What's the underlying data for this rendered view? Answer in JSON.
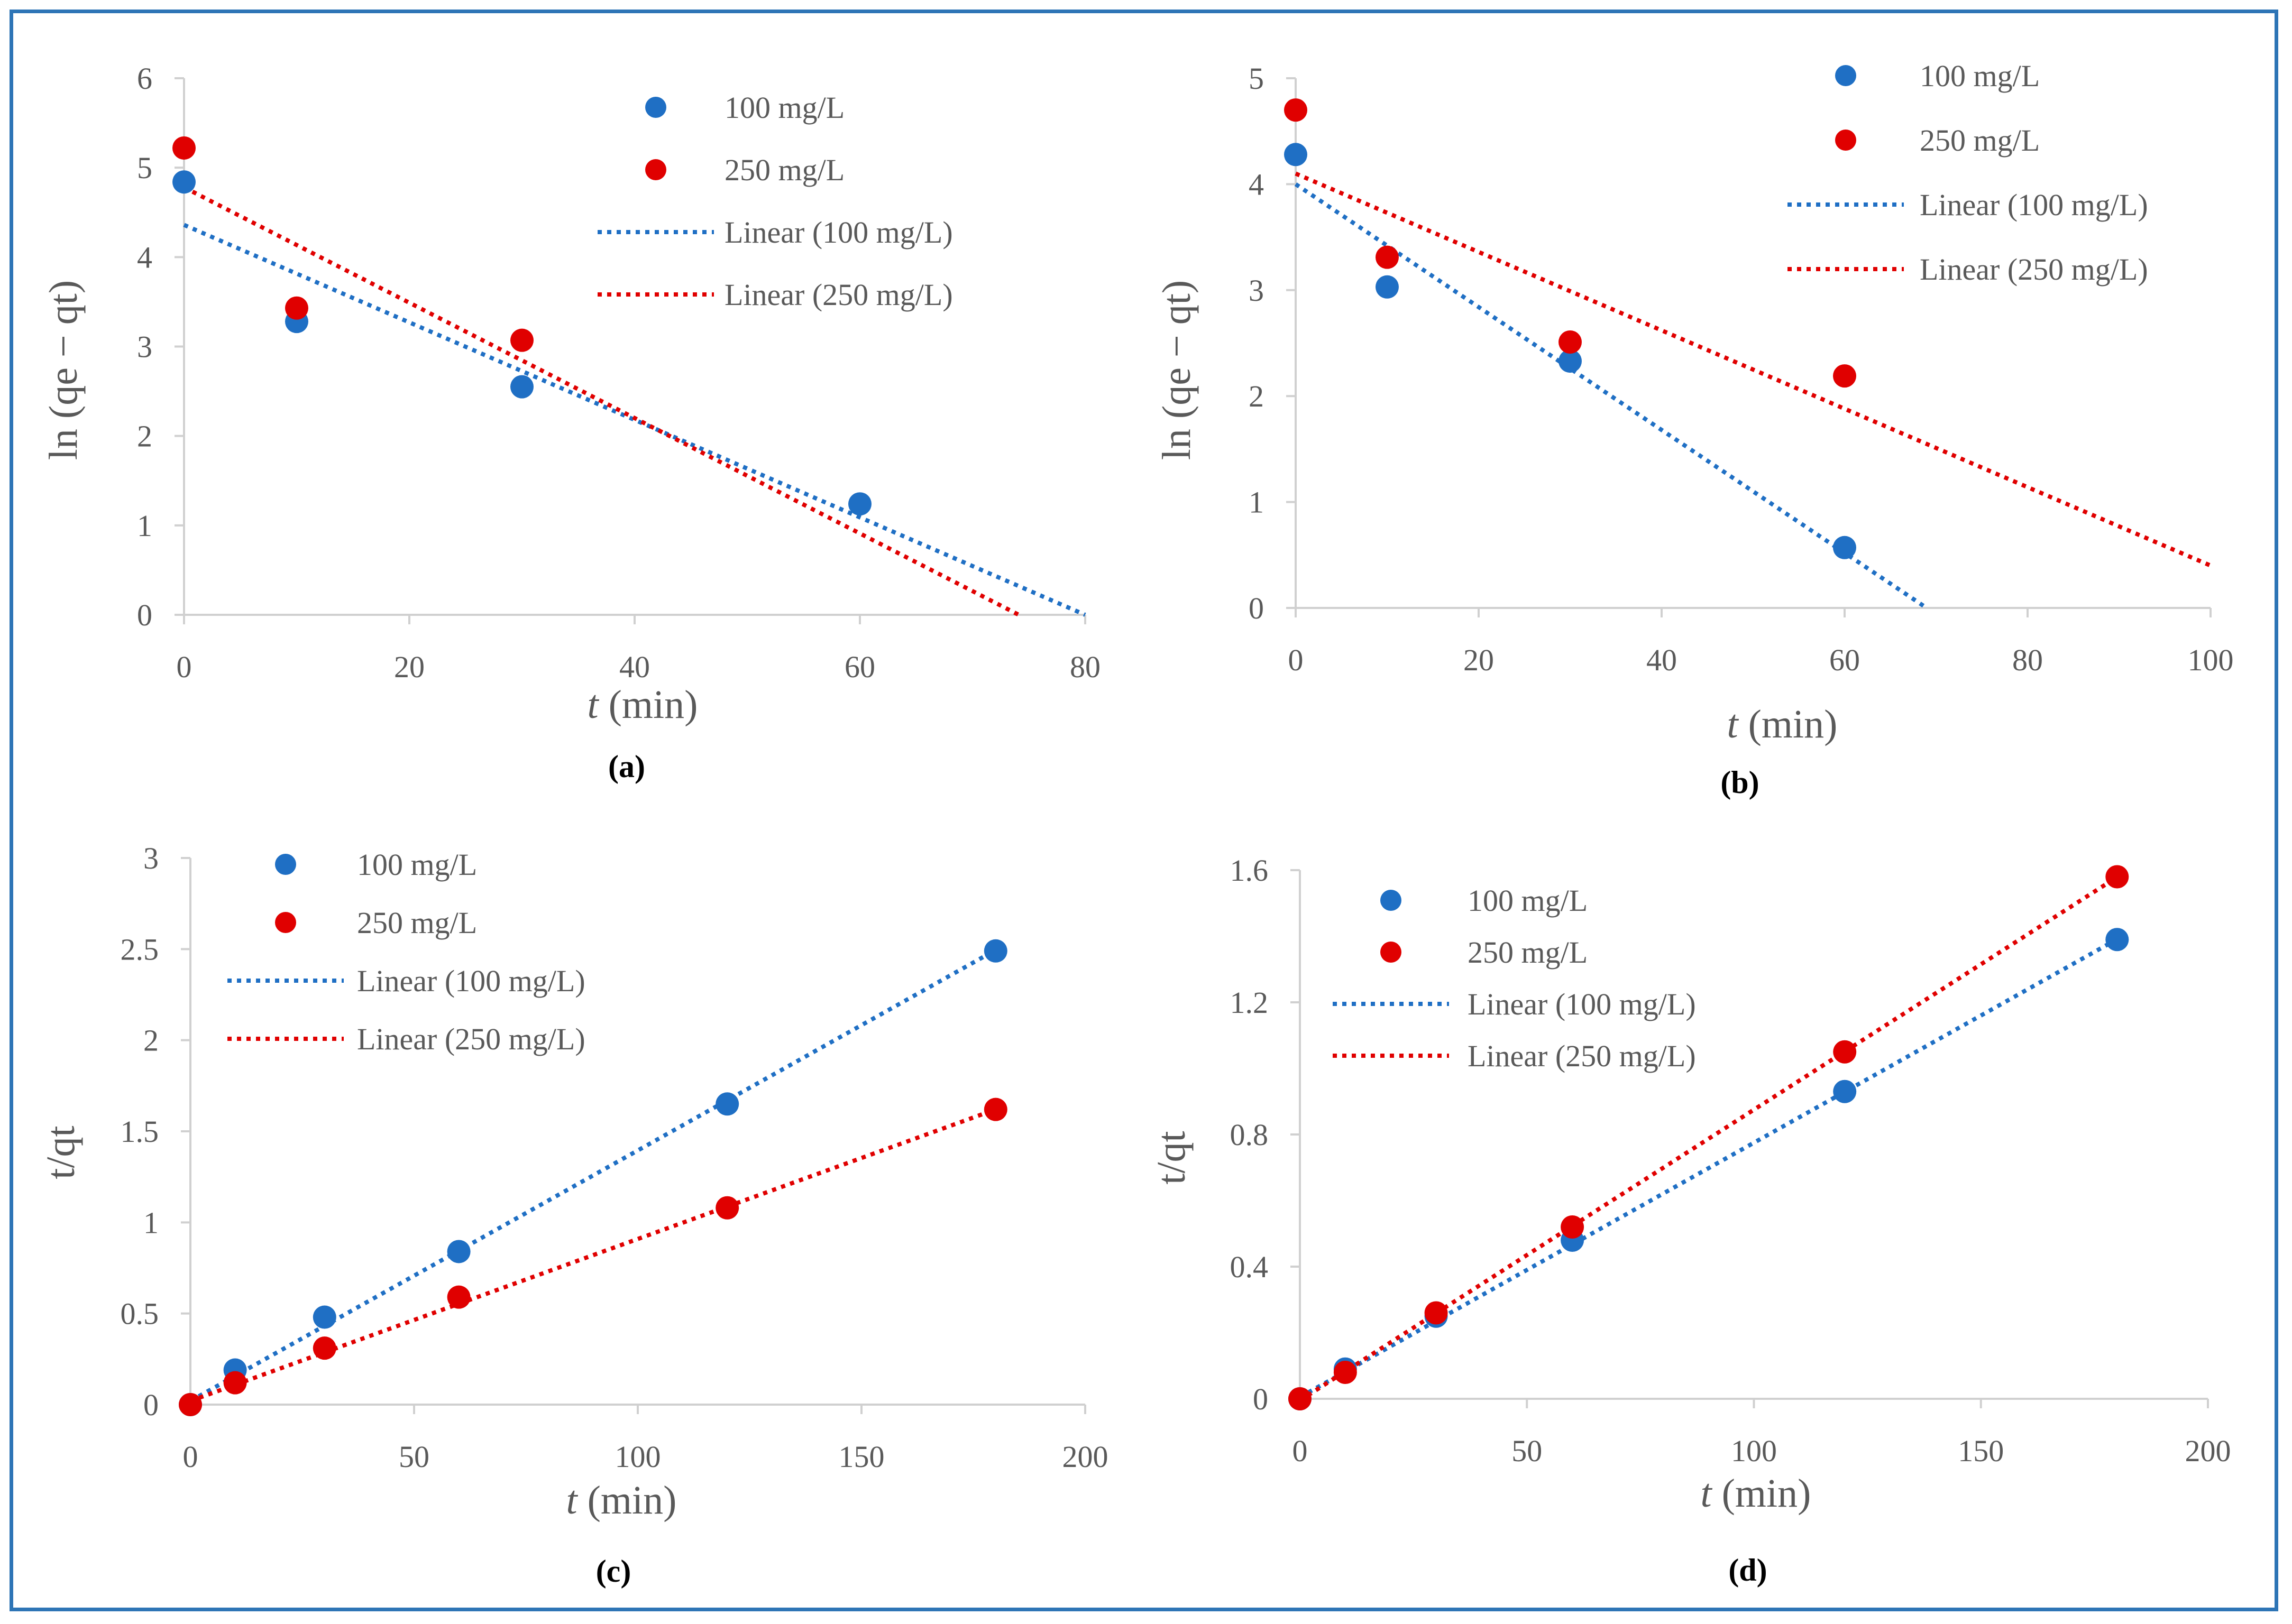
{
  "colors": {
    "series1": "#1f6fc4",
    "series2": "#e00000",
    "axis": "#d0d0d0",
    "text": "#595959"
  },
  "chart_data": [
    {
      "id": "a",
      "type": "scatter",
      "caption": "(a)",
      "xlabel": {
        "italic": "t",
        "rest": " (min)"
      },
      "ylabel": "ln (qe − qt)",
      "xlim": [
        0,
        80
      ],
      "ylim": [
        0,
        6
      ],
      "xticks": [
        0,
        20,
        40,
        60,
        80
      ],
      "yticks": [
        0,
        1,
        2,
        3,
        4,
        5,
        6
      ],
      "ytick_labels": [
        "0",
        "1",
        "2",
        "3",
        "4",
        "5",
        "6"
      ],
      "series": [
        {
          "name": "100 mg/L",
          "color": "#1f6fc4",
          "points": [
            [
              0,
              4.84
            ],
            [
              10,
              3.28
            ],
            [
              30,
              2.55
            ],
            [
              60,
              1.24
            ]
          ]
        },
        {
          "name": "250 mg/L",
          "color": "#e00000",
          "points": [
            [
              0,
              5.22
            ],
            [
              10,
              3.43
            ],
            [
              30,
              3.07
            ]
          ]
        }
      ],
      "trendlines": [
        {
          "name": "Linear (100 mg/L)",
          "color": "#1f6fc4",
          "slope": -0.0545,
          "intercept": 4.36,
          "x_range": [
            0,
            80
          ]
        },
        {
          "name": "Linear (250 mg/L)",
          "color": "#e00000",
          "slope": -0.0645,
          "intercept": 4.78,
          "x_range": [
            0,
            74.1
          ]
        }
      ]
    },
    {
      "id": "b",
      "type": "scatter",
      "caption": "(b)",
      "xlabel": {
        "italic": "t",
        "rest": " (min)"
      },
      "ylabel": "ln (qe − qt)",
      "xlim": [
        0,
        100
      ],
      "ylim": [
        0,
        5
      ],
      "xticks": [
        0,
        20,
        40,
        60,
        80,
        100
      ],
      "yticks": [
        0,
        1,
        2,
        3,
        4,
        5
      ],
      "ytick_labels": [
        "0",
        "1",
        "2",
        "3",
        "4",
        "5"
      ],
      "series": [
        {
          "name": "100 mg/L",
          "color": "#1f6fc4",
          "points": [
            [
              0,
              4.28
            ],
            [
              10,
              3.03
            ],
            [
              30,
              2.33
            ],
            [
              60,
              0.57
            ]
          ]
        },
        {
          "name": "250 mg/L",
          "color": "#e00000",
          "points": [
            [
              0,
              4.7
            ],
            [
              10,
              3.31
            ],
            [
              30,
              2.51
            ],
            [
              60,
              2.19
            ]
          ]
        }
      ],
      "trendlines": [
        {
          "name": "Linear (100 mg/L)",
          "color": "#1f6fc4",
          "slope": -0.058,
          "intercept": 4.0,
          "x_range": [
            0,
            69
          ]
        },
        {
          "name": "Linear (250 mg/L)",
          "color": "#e00000",
          "slope": -0.037,
          "intercept": 4.1,
          "x_range": [
            0,
            100
          ]
        }
      ]
    },
    {
      "id": "c",
      "type": "scatter",
      "caption": "(c)",
      "xlabel": {
        "italic": "t",
        "rest": " (min)"
      },
      "ylabel": "t/qt",
      "xlim": [
        0,
        200
      ],
      "ylim": [
        0,
        3
      ],
      "xticks": [
        0,
        50,
        100,
        150,
        200
      ],
      "yticks": [
        0,
        0.5,
        1,
        1.5,
        2,
        2.5,
        3
      ],
      "ytick_labels": [
        "0",
        "0.5",
        "1",
        "1.5",
        "2",
        "2.5",
        "3"
      ],
      "series": [
        {
          "name": "100 mg/L",
          "color": "#1f6fc4",
          "points": [
            [
              0,
              0
            ],
            [
              10,
              0.19
            ],
            [
              30,
              0.48
            ],
            [
              60,
              0.84
            ],
            [
              120,
              1.65
            ],
            [
              180,
              2.49
            ]
          ]
        },
        {
          "name": "250 mg/L",
          "color": "#e00000",
          "points": [
            [
              0,
              0
            ],
            [
              10,
              0.12
            ],
            [
              30,
              0.31
            ],
            [
              60,
              0.59
            ],
            [
              120,
              1.08
            ],
            [
              180,
              1.62
            ]
          ]
        }
      ],
      "trendlines": [
        {
          "name": "Linear (100 mg/L)",
          "color": "#1f6fc4",
          "slope": 0.01375,
          "intercept": 0.02,
          "x_range": [
            0,
            180
          ]
        },
        {
          "name": "Linear (250 mg/L)",
          "color": "#e00000",
          "slope": 0.00889,
          "intercept": 0.02,
          "x_range": [
            0,
            180
          ]
        }
      ]
    },
    {
      "id": "d",
      "type": "scatter",
      "caption": "(d)",
      "xlabel": {
        "italic": "t",
        "rest": " (min)"
      },
      "ylabel": "t/qt",
      "xlim": [
        0,
        200
      ],
      "ylim": [
        0,
        1.6
      ],
      "xticks": [
        0,
        50,
        100,
        150,
        200
      ],
      "yticks": [
        0,
        0.4,
        0.8,
        1.2,
        1.6
      ],
      "ytick_labels": [
        "0",
        "0.4",
        "0.8",
        "1.2",
        "1.6"
      ],
      "series": [
        {
          "name": "100 mg/L",
          "color": "#1f6fc4",
          "points": [
            [
              0,
              0
            ],
            [
              10,
              0.09
            ],
            [
              30,
              0.25
            ],
            [
              60,
              0.48
            ],
            [
              120,
              0.93
            ],
            [
              180,
              1.39
            ]
          ]
        },
        {
          "name": "250 mg/L",
          "color": "#e00000",
          "points": [
            [
              0,
              0
            ],
            [
              10,
              0.08
            ],
            [
              30,
              0.26
            ],
            [
              60,
              0.52
            ],
            [
              120,
              1.05
            ],
            [
              180,
              1.58
            ]
          ]
        }
      ],
      "trendlines": [
        {
          "name": "Linear (100 mg/L)",
          "color": "#1f6fc4",
          "slope": 0.0077,
          "intercept": 0.005,
          "x_range": [
            0,
            180
          ]
        },
        {
          "name": "Linear (250 mg/L)",
          "color": "#e00000",
          "slope": 0.0088,
          "intercept": -0.005,
          "x_range": [
            0,
            180
          ]
        }
      ]
    }
  ]
}
